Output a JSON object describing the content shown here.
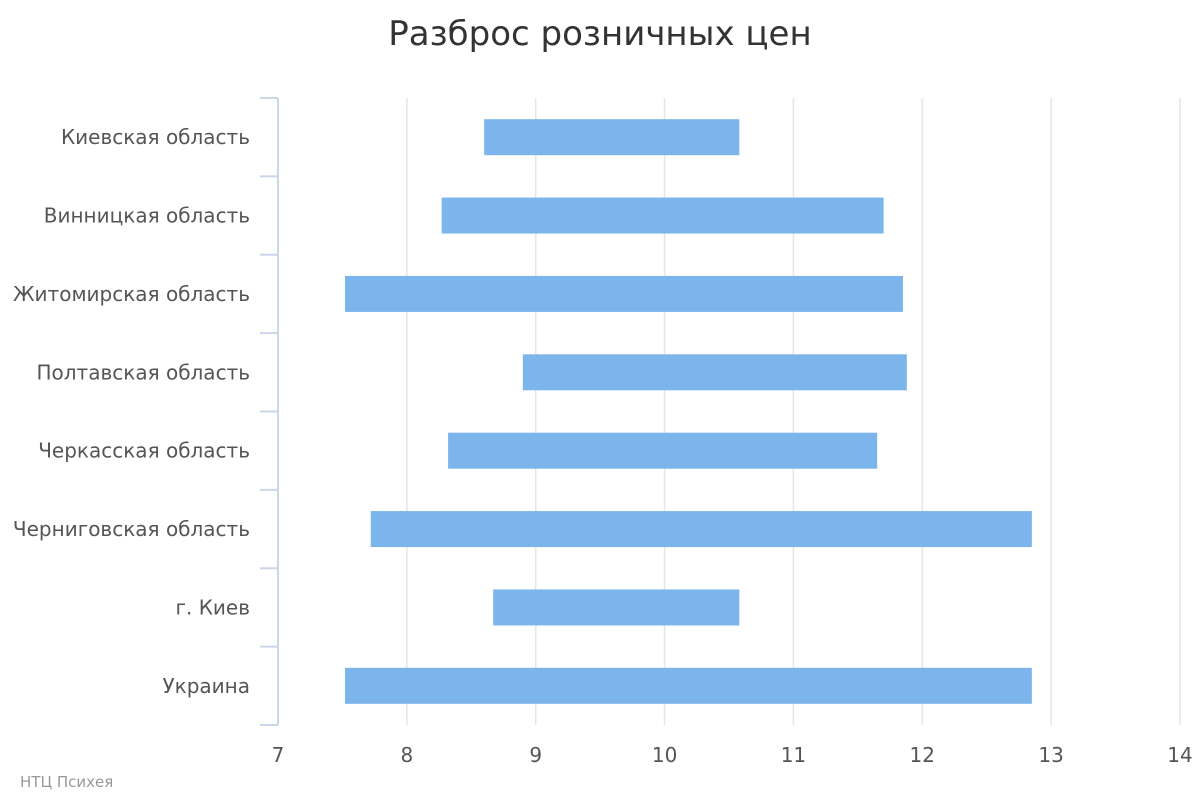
{
  "chart_data": {
    "type": "bar",
    "orientation": "horizontal",
    "subtype": "range",
    "title": "Разброс розничных цен",
    "xlabel": "",
    "ylabel": "",
    "categories": [
      "Киевская область",
      "Винницкая область",
      "Житомирская область",
      "Полтавская область",
      "Черкасская область",
      "Черниговская область",
      "г. Киев",
      "Украина"
    ],
    "series": [
      {
        "low": [
          8.6,
          8.27,
          7.52,
          8.9,
          8.32,
          7.72,
          8.67,
          7.52
        ],
        "high": [
          10.58,
          11.7,
          11.85,
          11.88,
          11.65,
          12.85,
          10.58,
          12.85
        ]
      }
    ],
    "xlim": [
      7,
      14
    ],
    "xticks": [
      7,
      8,
      9,
      10,
      11,
      12,
      13,
      14
    ],
    "grid": true,
    "legend": "none",
    "bar_color": "#7cb5ec",
    "grid_color": "#e6e6e6",
    "axis_color": "#ccd6eb"
  },
  "credit": "НТЦ Психея"
}
